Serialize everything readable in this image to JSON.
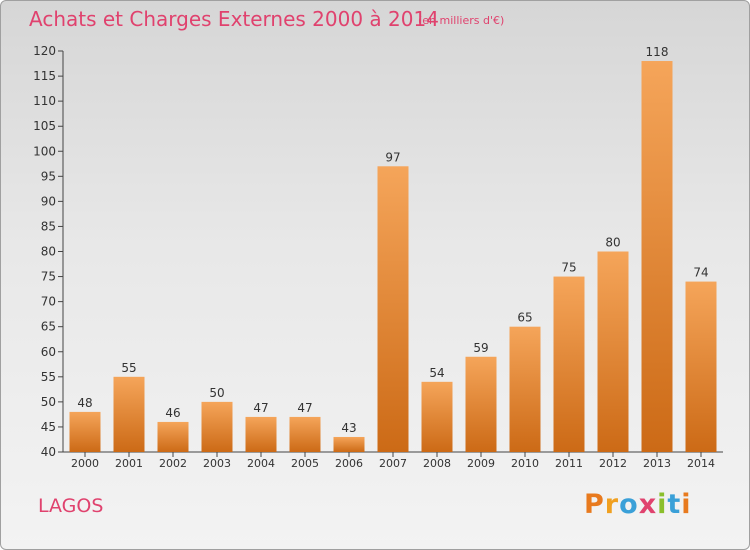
{
  "title": "Achats et Charges Externes 2000 à 2014",
  "unit": "(en milliers d'€)",
  "commune": "LAGOS",
  "logo_text": "Proxiti",
  "colors": {
    "title": "#e0426e",
    "bar_top": "#f5a55a",
    "bar_bottom": "#cc6a16"
  },
  "chart_data": {
    "type": "bar",
    "title": "Achats et Charges Externes 2000 à 2014",
    "xlabel": "",
    "ylabel": "",
    "categories": [
      "2000",
      "2001",
      "2002",
      "2003",
      "2004",
      "2005",
      "2006",
      "2007",
      "2008",
      "2009",
      "2010",
      "2011",
      "2012",
      "2013",
      "2014"
    ],
    "values": [
      48,
      55,
      46,
      50,
      47,
      47,
      43,
      97,
      54,
      59,
      65,
      75,
      80,
      118,
      74
    ],
    "ylim": [
      40,
      120
    ],
    "yticks": [
      40,
      45,
      50,
      55,
      60,
      65,
      70,
      75,
      80,
      85,
      90,
      95,
      100,
      105,
      110,
      115,
      120
    ],
    "grid": false
  }
}
